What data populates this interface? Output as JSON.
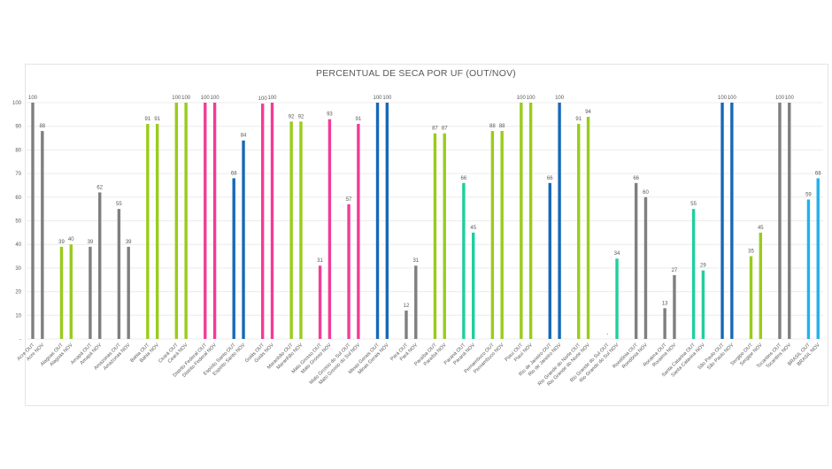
{
  "chart_data": {
    "type": "bar",
    "title": "PERCENTUAL DE SECA POR UF (OUT/NOV)",
    "xlabel": "",
    "ylabel": "",
    "ylim": [
      0,
      100
    ],
    "yticks": [
      "-",
      "10",
      "20",
      "30",
      "40",
      "50",
      "60",
      "70",
      "80",
      "90",
      "100"
    ],
    "grid": true,
    "legend": "none",
    "colors": {
      "gray": "#7f7f7f",
      "green": "#99cc1a",
      "pink": "#f23c98",
      "blue": "#1769b8",
      "teal": "#1fcf9e",
      "lightblue": "#22b2ea"
    },
    "groups": [
      {
        "name": "Acre",
        "color": "gray",
        "bars": [
          {
            "label": "Acre OUT",
            "value": 100,
            "text": "100"
          },
          {
            "label": "Acre NOV",
            "value": 88,
            "text": "88"
          }
        ]
      },
      {
        "name": "Alagoas",
        "color": "green",
        "bars": [
          {
            "label": "Alagoas OUT",
            "value": 39,
            "text": "39"
          },
          {
            "label": "Alagoas NOV",
            "value": 40,
            "text": "40"
          }
        ]
      },
      {
        "name": "Amapá",
        "color": "gray",
        "bars": [
          {
            "label": "Amapá OUT",
            "value": 39,
            "text": "39"
          },
          {
            "label": "Amapá NOV",
            "value": 62,
            "text": "62"
          }
        ]
      },
      {
        "name": "Amazonas",
        "color": "gray",
        "bars": [
          {
            "label": "Amazonas OUT",
            "value": 55,
            "text": "55"
          },
          {
            "label": "Amazonas NOV",
            "value": 39,
            "text": "39"
          }
        ]
      },
      {
        "name": "Bahia",
        "color": "green",
        "bars": [
          {
            "label": "Bahia OUT",
            "value": 91,
            "text": "91"
          },
          {
            "label": "Bahia NOV",
            "value": 91,
            "text": "91"
          }
        ]
      },
      {
        "name": "Ceará",
        "color": "green",
        "bars": [
          {
            "label": "Ceará OUT",
            "value": 100,
            "text": "100"
          },
          {
            "label": "Ceará NOV",
            "value": 100,
            "text": "100"
          }
        ]
      },
      {
        "name": "Distrito Federal",
        "color": "pink",
        "bars": [
          {
            "label": "Distrito Federal OUT",
            "value": 100,
            "text": "100"
          },
          {
            "label": "Distrito Federal NOV",
            "value": 100,
            "text": "100"
          }
        ]
      },
      {
        "name": "Espírito Santo",
        "color": "blue",
        "bars": [
          {
            "label": "Espírito Santo OUT",
            "value": 68,
            "text": "68"
          },
          {
            "label": "Espírito Santo NOV",
            "value": 84,
            "text": "84"
          }
        ]
      },
      {
        "name": "Goiás",
        "color": "pink",
        "bars": [
          {
            "label": "Goiás OUT",
            "value": 99.6,
            "text": "100"
          },
          {
            "label": "Goiás NOV",
            "value": 100,
            "text": "100"
          }
        ]
      },
      {
        "name": "Maranhão",
        "color": "green",
        "bars": [
          {
            "label": "Maranhão OUT",
            "value": 92,
            "text": "92"
          },
          {
            "label": "Maranhão NOV",
            "value": 92,
            "text": "92"
          }
        ]
      },
      {
        "name": "Mato Grosso",
        "color": "pink",
        "bars": [
          {
            "label": "Mato Grosso OUT",
            "value": 31,
            "text": "31"
          },
          {
            "label": "Mato Grosso NOV",
            "value": 93,
            "text": "93"
          }
        ]
      },
      {
        "name": "Mato Grosso do Sul",
        "color": "pink",
        "bars": [
          {
            "label": "Mato Grosso do Sul OUT",
            "value": 57,
            "text": "57"
          },
          {
            "label": "Mato Grosso do Sul NOV",
            "value": 91,
            "text": "91"
          }
        ]
      },
      {
        "name": "Minas Gerais",
        "color": "blue",
        "bars": [
          {
            "label": "Minas Gerais OUT",
            "value": 100,
            "text": "100"
          },
          {
            "label": "Minas Gerais NOV",
            "value": 100,
            "text": "100"
          }
        ]
      },
      {
        "name": "Pará",
        "color": "gray",
        "bars": [
          {
            "label": "Pará OUT",
            "value": 12,
            "text": "12"
          },
          {
            "label": "Pará NOV",
            "value": 31,
            "text": "31"
          }
        ]
      },
      {
        "name": "Paraíba",
        "color": "green",
        "bars": [
          {
            "label": "Paraíba OUT",
            "value": 87,
            "text": "87"
          },
          {
            "label": "Paraíba NOV",
            "value": 87,
            "text": "87"
          }
        ]
      },
      {
        "name": "Paraná",
        "color": "teal",
        "bars": [
          {
            "label": "Paraná OUT",
            "value": 66,
            "text": "66"
          },
          {
            "label": "Paraná NOV",
            "value": 45,
            "text": "45"
          }
        ]
      },
      {
        "name": "Pernambuco",
        "color": "green",
        "bars": [
          {
            "label": "Pernambuco OUT",
            "value": 88,
            "text": "88"
          },
          {
            "label": "Pernambuco NOV",
            "value": 88,
            "text": "88"
          }
        ]
      },
      {
        "name": "Piauí",
        "color": "green",
        "bars": [
          {
            "label": "Piauí OUT",
            "value": 100,
            "text": "100"
          },
          {
            "label": "Piauí NOV",
            "value": 100,
            "text": "100"
          }
        ]
      },
      {
        "name": "Rio de Janeiro",
        "color": "blue",
        "bars": [
          {
            "label": "Rio de Janeiro OUT",
            "value": 66,
            "text": "66"
          },
          {
            "label": "Rio de Janeiro NOV",
            "value": 100,
            "text": "100"
          }
        ]
      },
      {
        "name": "Rio Grande do Norte",
        "color": "green",
        "bars": [
          {
            "label": "Rio Grande do Norte OUT",
            "value": 91,
            "text": "91"
          },
          {
            "label": "Rio Grande do Norte NOV",
            "value": 94,
            "text": "94"
          }
        ]
      },
      {
        "name": "Rio Grande do Sul",
        "color": "teal",
        "bars": [
          {
            "label": "Rio Grande do Sul OUT",
            "value": 0,
            "text": "-"
          },
          {
            "label": "Rio Grande do Sul NOV",
            "value": 34,
            "text": "34"
          }
        ]
      },
      {
        "name": "Rondônia",
        "color": "gray",
        "bars": [
          {
            "label": "Rondônia OUT",
            "value": 66,
            "text": "66"
          },
          {
            "label": "Rondônia NOV",
            "value": 60,
            "text": "60"
          }
        ]
      },
      {
        "name": "Roraima",
        "color": "gray",
        "bars": [
          {
            "label": "Roraima OUT",
            "value": 13,
            "text": "13"
          },
          {
            "label": "Roraima NOV",
            "value": 27,
            "text": "27"
          }
        ]
      },
      {
        "name": "Santa Catarina",
        "color": "teal",
        "bars": [
          {
            "label": "Santa Catarina OUT",
            "value": 55,
            "text": "55"
          },
          {
            "label": "Santa Catarina NOV",
            "value": 29,
            "text": "29"
          }
        ]
      },
      {
        "name": "São Paulo",
        "color": "blue",
        "bars": [
          {
            "label": "São Paulo OUT",
            "value": 100,
            "text": "100"
          },
          {
            "label": "São Paulo NOV",
            "value": 100,
            "text": "100"
          }
        ]
      },
      {
        "name": "Sergipe",
        "color": "green",
        "bars": [
          {
            "label": "Sergipe OUT",
            "value": 35,
            "text": "35"
          },
          {
            "label": "Sergipe NOV",
            "value": 45,
            "text": "45"
          }
        ]
      },
      {
        "name": "Tocantins",
        "color": "gray",
        "bars": [
          {
            "label": "Tocantins OUT",
            "value": 100,
            "text": "100"
          },
          {
            "label": "Tocantins NOV",
            "value": 100,
            "text": "100"
          }
        ]
      },
      {
        "name": "BRASIL",
        "color": "lightblue",
        "bars": [
          {
            "label": "BRASIL OUT",
            "value": 59,
            "text": "59"
          },
          {
            "label": "BRASIL NOV",
            "value": 68,
            "text": "68"
          }
        ]
      }
    ]
  }
}
